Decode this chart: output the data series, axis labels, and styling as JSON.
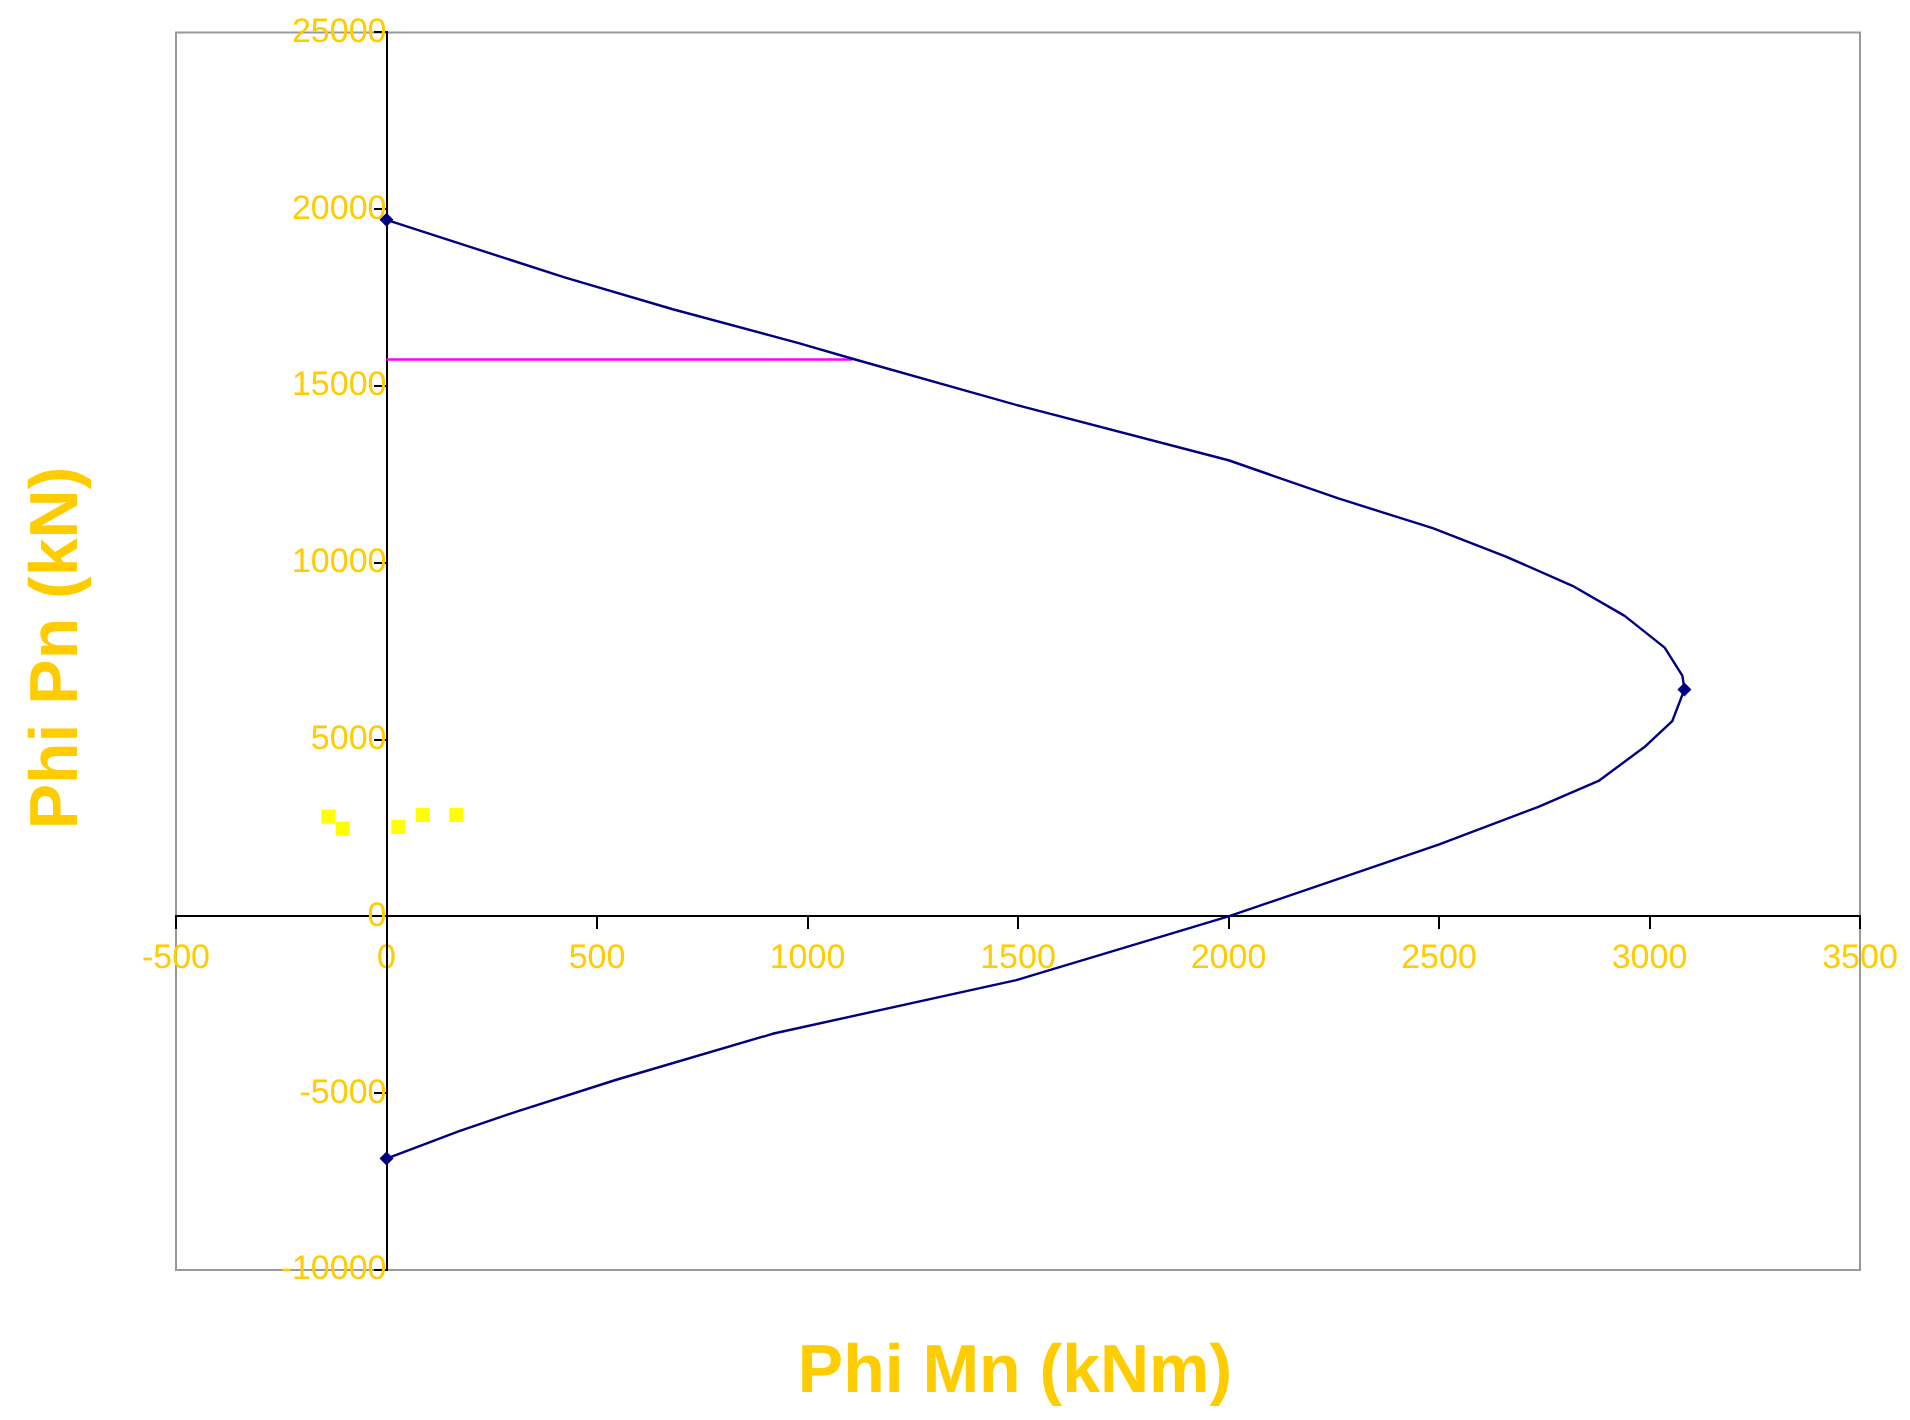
{
  "chart_data": {
    "type": "line",
    "xlabel": "Phi Mn (kNm)",
    "ylabel": "Phi Pn (kN)",
    "xlim": [
      -500,
      3500
    ],
    "xticks": [
      -500,
      0,
      500,
      1000,
      1500,
      2000,
      2500,
      3000,
      3500
    ],
    "ylim": [
      -10000,
      25000
    ],
    "yticks": [
      -10000,
      -5000,
      0,
      5000,
      10000,
      15000,
      20000,
      25000
    ],
    "grid": false,
    "legend": false,
    "line_style": "solid",
    "series": [
      {
        "color": "#000080",
        "marker": "none",
        "x": [
          0,
          423,
          680,
          979,
          1107,
          1500,
          2000,
          2261,
          2485,
          2656,
          2817,
          2941,
          3036,
          3078,
          3083,
          3054,
          2988,
          2879,
          2736,
          2499,
          2000,
          1496,
          917,
          546,
          309,
          171,
          0
        ],
        "values": [
          19700,
          18070,
          17170,
          16210,
          15770,
          14450,
          12900,
          11820,
          10980,
          10190,
          9350,
          8500,
          7600,
          6810,
          6420,
          5520,
          4790,
          3830,
          3100,
          2030,
          0,
          -1800,
          -3320,
          -4620,
          -5520,
          -6080,
          -6850
        ]
      },
      {
        "type": "scatter",
        "color": "#000080",
        "marker": "diamond",
        "x": [
          0,
          3083,
          0
        ],
        "values": [
          19700,
          6420,
          -6850
        ]
      },
      {
        "color": "#ff00ff",
        "marker": "none",
        "x": [
          0,
          1107
        ],
        "values": [
          15750,
          15750
        ]
      },
      {
        "type": "scatter",
        "color": "#ffff00",
        "marker": "square",
        "x": [
          -138,
          -104,
          28,
          86,
          166
        ],
        "values": [
          2820,
          2480,
          2530,
          2870,
          2870
        ]
      }
    ]
  }
}
